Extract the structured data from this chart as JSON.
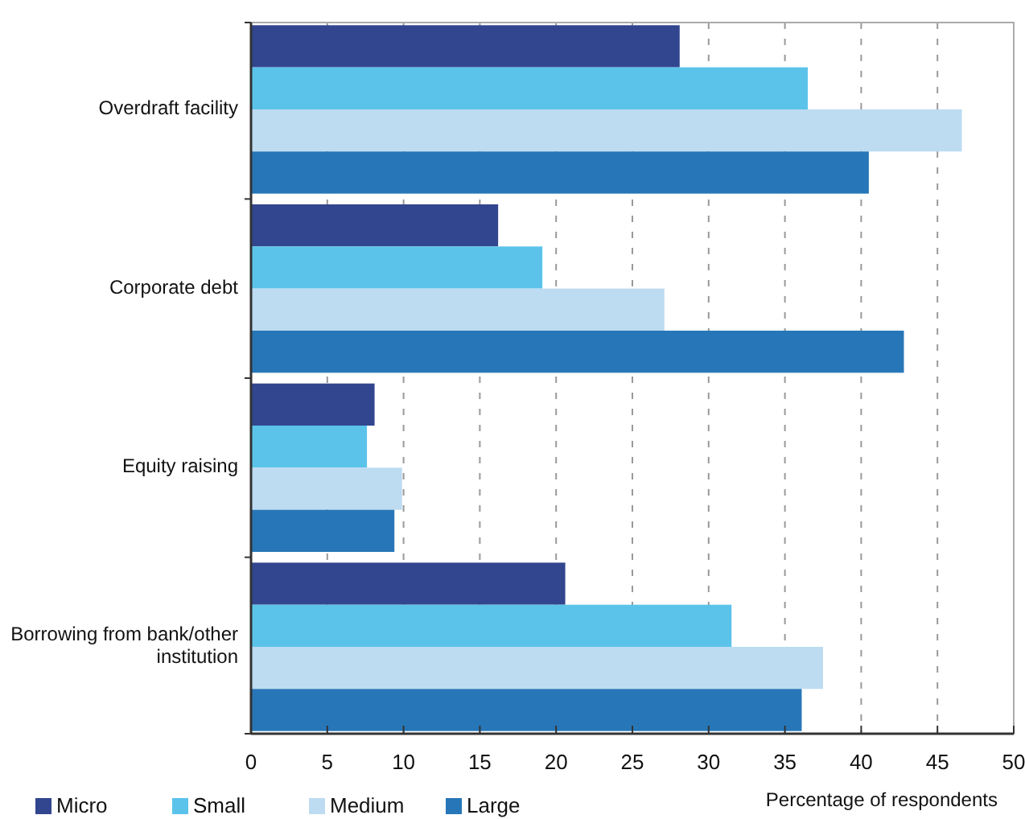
{
  "chart_data": {
    "type": "bar",
    "orientation": "horizontal",
    "xlabel": "Percentage of respondents",
    "categories": [
      "Overdraft facility",
      "Corporate debt",
      "Equity raising",
      "Borrowing from bank/other institution"
    ],
    "series": [
      {
        "name": "Micro",
        "color": "#32468f",
        "values": [
          28.1,
          16.2,
          8.1,
          20.6
        ]
      },
      {
        "name": "Small",
        "color": "#5bc3ea",
        "values": [
          36.5,
          19.1,
          7.6,
          31.5
        ]
      },
      {
        "name": "Medium",
        "color": "#bddcf1",
        "values": [
          46.6,
          27.1,
          9.9,
          37.5
        ]
      },
      {
        "name": "Large",
        "color": "#2777b8",
        "values": [
          40.5,
          42.8,
          9.4,
          36.1
        ]
      }
    ],
    "xlim": [
      0,
      50
    ],
    "xticks": [
      0,
      5,
      10,
      15,
      20,
      25,
      30,
      35,
      40,
      45,
      50
    ],
    "grid": "x",
    "legend": "bottom left"
  }
}
